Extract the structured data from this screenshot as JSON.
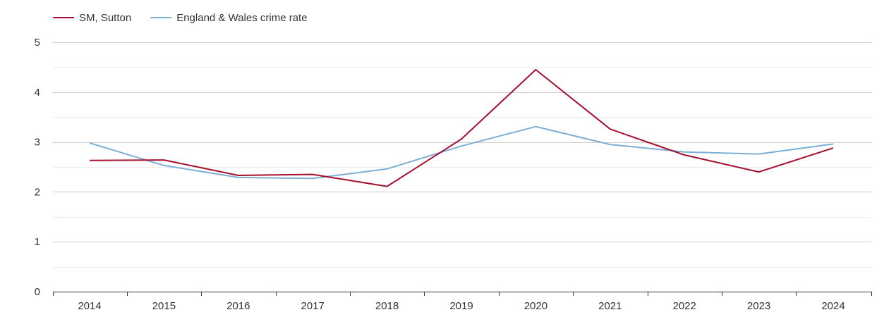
{
  "chart_data": {
    "type": "line",
    "title": "",
    "xlabel": "",
    "ylabel": "",
    "x": [
      "2014",
      "2015",
      "2016",
      "2017",
      "2018",
      "2019",
      "2020",
      "2021",
      "2022",
      "2023",
      "2024"
    ],
    "ylim": [
      0,
      5
    ],
    "yticks": [
      0,
      1,
      2,
      3,
      4,
      5
    ],
    "grid": true,
    "legend_position": "top-left",
    "series": [
      {
        "name": "SM, Sutton",
        "color": "#a50f2d",
        "values": [
          2.63,
          2.64,
          2.33,
          2.35,
          2.11,
          3.06,
          4.45,
          3.26,
          2.74,
          2.4,
          2.88
        ]
      },
      {
        "name": "England & Wales crime rate",
        "color": "#7bafd4",
        "values": [
          2.98,
          2.53,
          2.29,
          2.27,
          2.46,
          2.92,
          3.31,
          2.95,
          2.8,
          2.76,
          2.96
        ]
      }
    ]
  }
}
